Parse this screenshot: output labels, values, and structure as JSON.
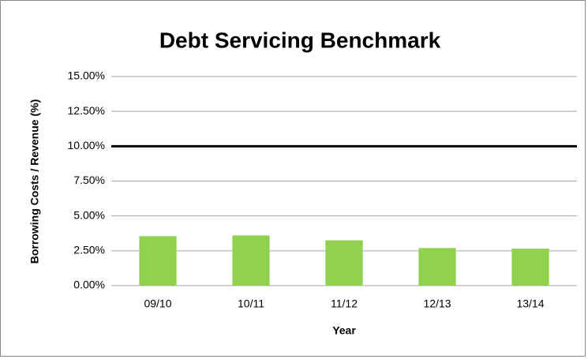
{
  "chart_data": {
    "type": "bar",
    "title": "Debt Servicing Benchmark",
    "x_label": "Year",
    "y_label": "Borrowing Costs / Revenue (%)",
    "categories": [
      "09/10",
      "10/11",
      "11/12",
      "12/13",
      "13/14"
    ],
    "values": [
      3.55,
      3.6,
      3.25,
      2.7,
      2.65
    ],
    "color": "#92d050",
    "ylim": [
      0,
      15
    ],
    "yticks": [
      {
        "value": 0,
        "label": "0.00%"
      },
      {
        "value": 2.5,
        "label": "2.50%"
      },
      {
        "value": 5,
        "label": "5.00%"
      },
      {
        "value": 7.5,
        "label": "7.50%"
      },
      {
        "value": 10,
        "label": "10.00%"
      },
      {
        "value": 12.5,
        "label": "12.50%"
      },
      {
        "value": 15,
        "label": "15.00%"
      }
    ],
    "grid": true,
    "reference_line": {
      "value": 10,
      "color": "#000000"
    }
  }
}
